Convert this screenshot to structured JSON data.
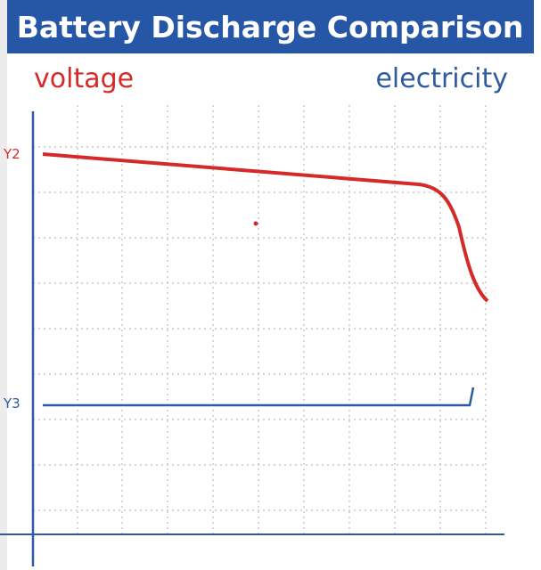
{
  "header": {
    "title": "Battery Discharge Comparison"
  },
  "labels": {
    "left": "voltage",
    "right": "electricity",
    "y2": "Y2",
    "y3": "Y3"
  }
}
